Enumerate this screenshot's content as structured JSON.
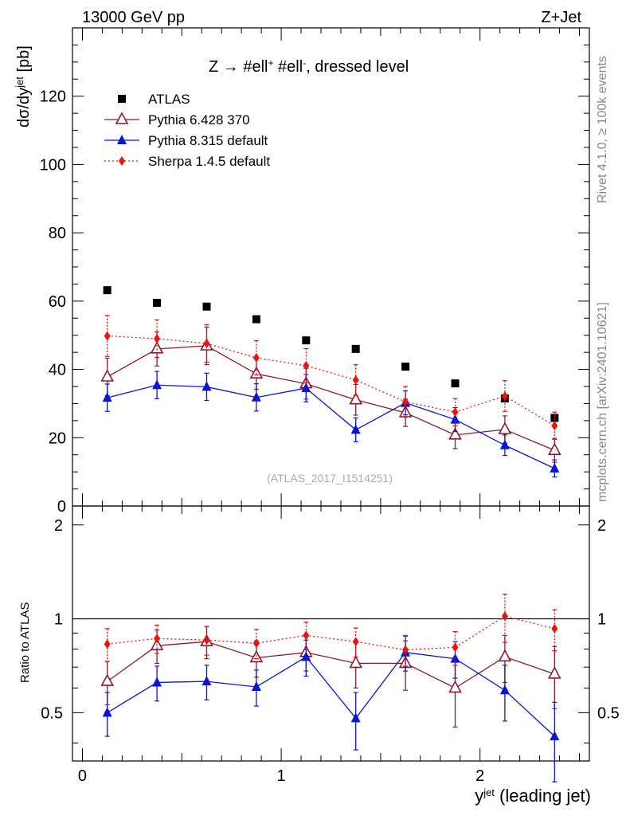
{
  "header": {
    "left": "13000 GeV pp",
    "right": "Z+Jet"
  },
  "side": {
    "rivet": "Rivet 4.1.0, ≥ 100k events",
    "mcplots": "mcplots.cern.ch [arXiv:2401.10621]"
  },
  "main": {
    "title_part1": "Z → #ell",
    "title_sup1": "+",
    "title_part2": " #ell",
    "title_sup2": "-",
    "title_part3": ", dressed level",
    "ylabel_base": "dσ/dy",
    "ylabel_sup": "jet",
    "ylabel_unit": " [pb]",
    "watermark": "(ATLAS_2017_I1514251)"
  },
  "ratio": {
    "ylabel": "Ratio to ATLAS"
  },
  "xaxis": {
    "label_base": "y",
    "label_sup": "jet",
    "label_rest": " (leading jet)"
  },
  "colors": {
    "atlas": "#000000",
    "pythia6": "#8b1a2b",
    "pythia8": "#0a14d6",
    "sherpa": "#ee1111"
  },
  "chart_data": [
    {
      "type": "scatter",
      "panel": "main",
      "xlim": [
        -0.05,
        2.55
      ],
      "ylim": [
        0,
        140
      ],
      "yticks": [
        0,
        20,
        40,
        60,
        80,
        100,
        120
      ],
      "x": [
        0.125,
        0.375,
        0.625,
        0.875,
        1.125,
        1.375,
        1.625,
        1.875,
        2.125,
        2.375
      ],
      "legend_position": "top-left",
      "series": [
        {
          "name": "ATLAS",
          "marker": "square",
          "line": "none",
          "values": [
            63.2,
            59.5,
            58.4,
            54.7,
            48.5,
            46.0,
            40.8,
            35.9,
            31.5,
            25.8
          ],
          "err": [
            0,
            0,
            0,
            0,
            0,
            0,
            0,
            0,
            0,
            0
          ]
        },
        {
          "name": "Pythia 6.428 370",
          "marker": "open-triangle",
          "line": "solid",
          "values": [
            37.8,
            46.0,
            46.9,
            38.7,
            35.8,
            31.1,
            27.3,
            20.8,
            22.4,
            16.3
          ],
          "err": [
            5.5,
            5.0,
            5.5,
            4.5,
            4.5,
            4.5,
            4.0,
            4.0,
            4.0,
            3.5
          ]
        },
        {
          "name": "Pythia 8.315 default",
          "marker": "filled-triangle",
          "line": "solid",
          "values": [
            31.7,
            35.4,
            34.9,
            31.8,
            34.5,
            22.3,
            30.2,
            25.3,
            17.8,
            11.0
          ],
          "err": [
            4.0,
            4.0,
            4.0,
            4.0,
            4.0,
            3.5,
            3.5,
            3.5,
            3.0,
            2.5
          ]
        },
        {
          "name": "Sherpa 1.4.5 default",
          "marker": "diamond",
          "line": "dotted",
          "values": [
            49.8,
            49.0,
            47.6,
            43.4,
            41.1,
            36.9,
            30.5,
            27.5,
            32.2,
            23.5
          ],
          "err": [
            6.0,
            5.5,
            5.5,
            5.0,
            5.0,
            4.5,
            4.5,
            4.0,
            4.5,
            4.0
          ]
        }
      ]
    },
    {
      "type": "scatter",
      "panel": "ratio",
      "xlim": [
        -0.05,
        2.55
      ],
      "ylim": [
        0.35,
        2.3
      ],
      "yscale": "log",
      "yticks": [
        0.5,
        1,
        2
      ],
      "xticks": [
        0,
        1,
        2
      ],
      "x": [
        0.125,
        0.375,
        0.625,
        0.875,
        1.125,
        1.375,
        1.625,
        1.875,
        2.125,
        2.375
      ],
      "series": [
        {
          "name": "Pythia 6.428 370",
          "marker": "open-triangle",
          "line": "solid",
          "values": [
            0.63,
            0.82,
            0.845,
            0.75,
            0.78,
            0.72,
            0.72,
            0.6,
            0.755,
            0.665
          ],
          "err": [
            0.1,
            0.1,
            0.1,
            0.1,
            0.1,
            0.12,
            0.13,
            0.15,
            0.13,
            0.15
          ]
        },
        {
          "name": "Pythia 8.315 default",
          "marker": "filled-triangle",
          "line": "solid",
          "values": [
            0.5,
            0.625,
            0.63,
            0.605,
            0.755,
            0.48,
            0.78,
            0.745,
            0.59,
            0.42
          ],
          "err": [
            0.08,
            0.08,
            0.08,
            0.08,
            0.1,
            0.1,
            0.1,
            0.1,
            0.12,
            0.12
          ]
        },
        {
          "name": "Sherpa 1.4.5 default",
          "marker": "diamond",
          "line": "dotted",
          "values": [
            0.83,
            0.865,
            0.855,
            0.835,
            0.885,
            0.845,
            0.795,
            0.81,
            1.02,
            0.93
          ],
          "err": [
            0.1,
            0.09,
            0.09,
            0.09,
            0.09,
            0.09,
            0.09,
            0.1,
            0.18,
            0.14
          ]
        }
      ]
    }
  ]
}
